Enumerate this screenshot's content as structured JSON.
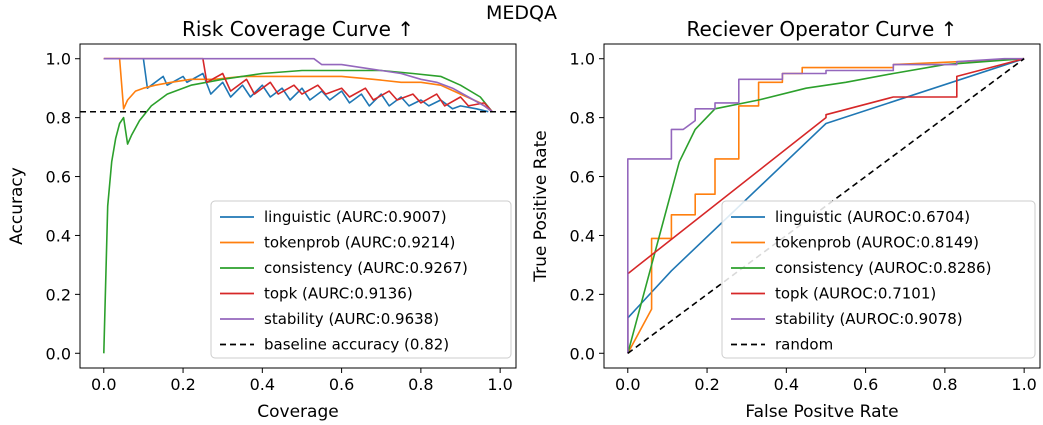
{
  "suptitle": "MEDQA",
  "chart_data": [
    {
      "type": "line",
      "title": "Risk Coverage Curve  ↑",
      "xlabel": "Coverage",
      "ylabel": "Accuracy",
      "xlim": [
        -0.06,
        1.04
      ],
      "ylim": [
        -0.05,
        1.05
      ],
      "xticks": [
        "0.0",
        "0.2",
        "0.4",
        "0.6",
        "0.8",
        "1.0"
      ],
      "yticks": [
        "0.0",
        "0.2",
        "0.4",
        "0.6",
        "0.8",
        "1.0"
      ],
      "legend_position": "lower-right",
      "series": [
        {
          "name": "linguistic (AURC:0.9007)",
          "color": "#1f77b4",
          "x": [
            0.1,
            0.11,
            0.15,
            0.16,
            0.2,
            0.21,
            0.25,
            0.27,
            0.3,
            0.32,
            0.35,
            0.37,
            0.4,
            0.42,
            0.45,
            0.47,
            0.5,
            0.52,
            0.55,
            0.57,
            0.6,
            0.62,
            0.65,
            0.67,
            0.7,
            0.72,
            0.75,
            0.77,
            0.8,
            0.82,
            0.85,
            0.88,
            0.9,
            0.94,
            0.97
          ],
          "y": [
            1.0,
            0.9,
            0.94,
            0.91,
            0.94,
            0.92,
            0.95,
            0.88,
            0.92,
            0.87,
            0.91,
            0.87,
            0.91,
            0.87,
            0.9,
            0.86,
            0.9,
            0.86,
            0.89,
            0.86,
            0.89,
            0.85,
            0.88,
            0.84,
            0.88,
            0.84,
            0.87,
            0.84,
            0.86,
            0.84,
            0.86,
            0.83,
            0.84,
            0.83,
            0.82
          ]
        },
        {
          "name": "tokenprob (AURC:0.9214)",
          "color": "#ff7f0e",
          "x": [
            0.0,
            0.04,
            0.05,
            0.06,
            0.08,
            0.1,
            0.13,
            0.17,
            0.22,
            0.28,
            0.35,
            0.43,
            0.52,
            0.6,
            0.68,
            0.75,
            0.8,
            0.85,
            0.9,
            0.95,
            0.98
          ],
          "y": [
            1.0,
            1.0,
            0.83,
            0.86,
            0.89,
            0.9,
            0.91,
            0.92,
            0.93,
            0.93,
            0.94,
            0.94,
            0.94,
            0.94,
            0.93,
            0.92,
            0.92,
            0.91,
            0.88,
            0.85,
            0.82
          ]
        },
        {
          "name": "consistency (AURC:0.9267)",
          "color": "#2ca02c",
          "x": [
            0.0,
            0.01,
            0.02,
            0.03,
            0.04,
            0.05,
            0.06,
            0.07,
            0.09,
            0.12,
            0.16,
            0.22,
            0.3,
            0.4,
            0.5,
            0.6,
            0.7,
            0.78,
            0.85,
            0.9,
            0.95,
            0.98
          ],
          "y": [
            0.0,
            0.5,
            0.65,
            0.73,
            0.78,
            0.8,
            0.71,
            0.74,
            0.79,
            0.84,
            0.88,
            0.91,
            0.93,
            0.95,
            0.96,
            0.96,
            0.96,
            0.95,
            0.94,
            0.91,
            0.87,
            0.82
          ]
        },
        {
          "name": "topk (AURC:0.9136)",
          "color": "#d62728",
          "x": [
            0.0,
            0.25,
            0.26,
            0.3,
            0.32,
            0.36,
            0.38,
            0.42,
            0.44,
            0.48,
            0.5,
            0.54,
            0.56,
            0.6,
            0.62,
            0.66,
            0.68,
            0.72,
            0.74,
            0.78,
            0.8,
            0.84,
            0.86,
            0.9,
            0.92,
            0.96,
            0.98
          ],
          "y": [
            1.0,
            1.0,
            0.92,
            0.95,
            0.89,
            0.93,
            0.88,
            0.92,
            0.88,
            0.91,
            0.88,
            0.91,
            0.88,
            0.9,
            0.87,
            0.9,
            0.86,
            0.89,
            0.86,
            0.88,
            0.85,
            0.88,
            0.84,
            0.87,
            0.84,
            0.85,
            0.82
          ]
        },
        {
          "name": "stability (AURC:0.9638)",
          "color": "#9467bd",
          "x": [
            0.0,
            0.53,
            0.55,
            0.6,
            0.65,
            0.7,
            0.75,
            0.8,
            0.84,
            0.88,
            0.92,
            0.96,
            0.98
          ],
          "y": [
            1.0,
            1.0,
            0.98,
            0.98,
            0.97,
            0.96,
            0.95,
            0.93,
            0.92,
            0.9,
            0.87,
            0.84,
            0.82
          ]
        },
        {
          "name": "baseline accuracy (0.82)",
          "color": "#000000",
          "dashed": true,
          "hline": 0.82
        }
      ]
    },
    {
      "type": "line",
      "title": "Reciever Operator Curve  ↑",
      "xlabel": "False Positve Rate",
      "ylabel": "True Positive Rate",
      "xlim": [
        -0.06,
        1.04
      ],
      "ylim": [
        -0.05,
        1.05
      ],
      "xticks": [
        "0.0",
        "0.2",
        "0.4",
        "0.6",
        "0.8",
        "1.0"
      ],
      "yticks": [
        "0.0",
        "0.2",
        "0.4",
        "0.6",
        "0.8",
        "1.0"
      ],
      "legend_position": "lower-right",
      "series": [
        {
          "name": "linguistic (AUROC:0.6704)",
          "color": "#1f77b4",
          "x": [
            0.0,
            0.0,
            0.11,
            0.5,
            1.0
          ],
          "y": [
            0.0,
            0.12,
            0.28,
            0.78,
            1.0
          ]
        },
        {
          "name": "tokenprob (AUROC:0.8149)",
          "color": "#ff7f0e",
          "x": [
            0.0,
            0.06,
            0.06,
            0.11,
            0.11,
            0.17,
            0.17,
            0.22,
            0.22,
            0.28,
            0.28,
            0.33,
            0.33,
            0.39,
            0.39,
            0.44,
            0.44,
            0.67,
            0.67,
            1.0
          ],
          "y": [
            0.0,
            0.15,
            0.39,
            0.39,
            0.47,
            0.47,
            0.54,
            0.54,
            0.66,
            0.66,
            0.84,
            0.84,
            0.92,
            0.92,
            0.95,
            0.95,
            0.97,
            0.97,
            0.98,
            1.0
          ]
        },
        {
          "name": "consistency (AUROC:0.8286)",
          "color": "#2ca02c",
          "x": [
            0.0,
            0.08,
            0.13,
            0.17,
            0.22,
            0.33,
            0.45,
            0.55,
            0.67,
            0.8,
            1.0
          ],
          "y": [
            0.0,
            0.4,
            0.65,
            0.76,
            0.83,
            0.86,
            0.9,
            0.92,
            0.95,
            0.98,
            1.0
          ]
        },
        {
          "name": "topk (AUROC:0.7101)",
          "color": "#d62728",
          "x": [
            0.0,
            0.0,
            0.5,
            0.5,
            0.67,
            0.83,
            0.83,
            1.0
          ],
          "y": [
            0.0,
            0.27,
            0.8,
            0.81,
            0.87,
            0.87,
            0.94,
            1.0
          ]
        },
        {
          "name": "stability (AUROC:0.9078)",
          "color": "#9467bd",
          "x": [
            0.0,
            0.0,
            0.11,
            0.11,
            0.14,
            0.17,
            0.17,
            0.22,
            0.22,
            0.28,
            0.28,
            0.39,
            0.39,
            0.5,
            0.5,
            0.67,
            0.67,
            0.83,
            0.83,
            0.95,
            1.0
          ],
          "y": [
            0.0,
            0.66,
            0.66,
            0.76,
            0.76,
            0.79,
            0.83,
            0.83,
            0.85,
            0.85,
            0.93,
            0.93,
            0.95,
            0.95,
            0.96,
            0.96,
            0.98,
            0.98,
            0.99,
            1.0,
            1.0
          ]
        },
        {
          "name": "random",
          "color": "#000000",
          "dashed": true,
          "x": [
            0.0,
            1.0
          ],
          "y": [
            0.0,
            1.0
          ]
        }
      ]
    }
  ]
}
